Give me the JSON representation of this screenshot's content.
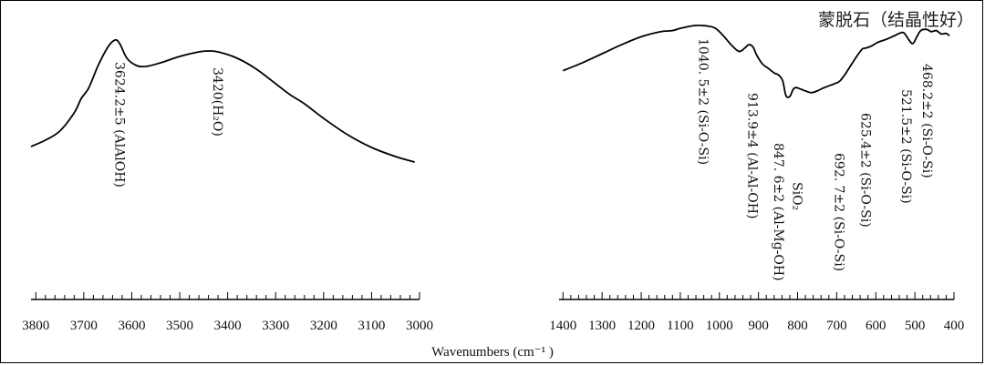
{
  "title": "蒙脱石（结晶性好）",
  "xlabel": "Wavenumbers (cm⁻¹ )",
  "chart_data": {
    "type": "line",
    "title": "蒙脱石（结晶性好）",
    "xlabel": "Wavenumbers (cm⁻¹ )",
    "ylabel": "",
    "grid": false,
    "panels": [
      {
        "name": "high",
        "xlim": [
          3810,
          3000
        ],
        "ylim": [
          0,
          1
        ],
        "x_ticks": [
          3800,
          3700,
          3600,
          3500,
          3400,
          3300,
          3200,
          3100,
          3000
        ],
        "series": [
          {
            "x": [
              3810,
              3780,
              3750,
              3720,
              3705,
              3690,
              3670,
              3650,
              3635,
              3625,
              3610,
              3590,
              3570,
              3540,
              3500,
              3460,
              3440,
              3420,
              3380,
              3340,
              3300,
              3270,
              3240,
              3200,
              3150,
              3100,
              3050,
              3010
            ],
            "y": [
              0.415,
              0.45,
              0.5,
              0.6,
              0.68,
              0.735,
              0.86,
              0.96,
              1.0,
              0.98,
              0.9,
              0.86,
              0.855,
              0.875,
              0.91,
              0.935,
              0.94,
              0.935,
              0.9,
              0.84,
              0.76,
              0.7,
              0.65,
              0.57,
              0.48,
              0.41,
              0.36,
              0.33
            ]
          }
        ],
        "annotations": [
          {
            "x": 3624.2,
            "text": "3624.2±5 (AlAlOH)"
          },
          {
            "x": 3420,
            "text": "3420(H₂O)"
          }
        ]
      },
      {
        "name": "low",
        "xlim": [
          1410,
          400
        ],
        "ylim": [
          0,
          1
        ],
        "x_ticks": [
          1400,
          1300,
          1200,
          1100,
          1000,
          900,
          800,
          700,
          600,
          500,
          400
        ],
        "series": [
          {
            "x": [
              1400,
              1350,
              1300,
              1250,
              1200,
              1150,
              1120,
              1100,
              1080,
              1060,
              1045,
              1030,
              1010,
              990,
              970,
              950,
              935,
              925,
              914,
              905,
              890,
              875,
              860,
              848,
              838,
              830,
              820,
              812,
              805,
              795,
              780,
              765,
              750,
              735,
              720,
              705,
              693,
              680,
              665,
              650,
              635,
              625,
              610,
              595,
              575,
              555,
              540,
              528,
              515,
              505,
              495,
              485,
              470,
              458,
              445,
              433,
              420,
              412
            ],
            "y": [
              0.6,
              0.67,
              0.75,
              0.83,
              0.9,
              0.945,
              0.955,
              0.975,
              0.99,
              1.0,
              1.0,
              0.995,
              0.975,
              0.91,
              0.83,
              0.77,
              0.8,
              0.83,
              0.81,
              0.74,
              0.66,
              0.62,
              0.58,
              0.56,
              0.51,
              0.38,
              0.37,
              0.43,
              0.45,
              0.44,
              0.42,
              0.405,
              0.42,
              0.445,
              0.465,
              0.485,
              0.505,
              0.56,
              0.64,
              0.72,
              0.79,
              0.8,
              0.82,
              0.85,
              0.875,
              0.905,
              0.93,
              0.935,
              0.87,
              0.84,
              0.9,
              0.955,
              0.965,
              0.945,
              0.955,
              0.925,
              0.93,
              0.91
            ]
          }
        ],
        "annotations": [
          {
            "x": 1040.5,
            "text": "1040. 5±2 (Si-O-Si)"
          },
          {
            "x": 913.9,
            "text": "913.9±4 (Al-Al-OH)"
          },
          {
            "x": 847.6,
            "text": "847. 6±2 (Al-Mg-OH)"
          },
          {
            "x": 800,
            "text": "SiO₂"
          },
          {
            "x": 692.7,
            "text": "692. 7±2 (Si-O-Si)"
          },
          {
            "x": 625.4,
            "text": "625.4±2 (Si-O-Si)"
          },
          {
            "x": 521.5,
            "text": "521.5±2 (Si-O-Si)"
          },
          {
            "x": 468.2,
            "text": "468.2±2 (Si-O-Si)"
          }
        ]
      }
    ]
  }
}
